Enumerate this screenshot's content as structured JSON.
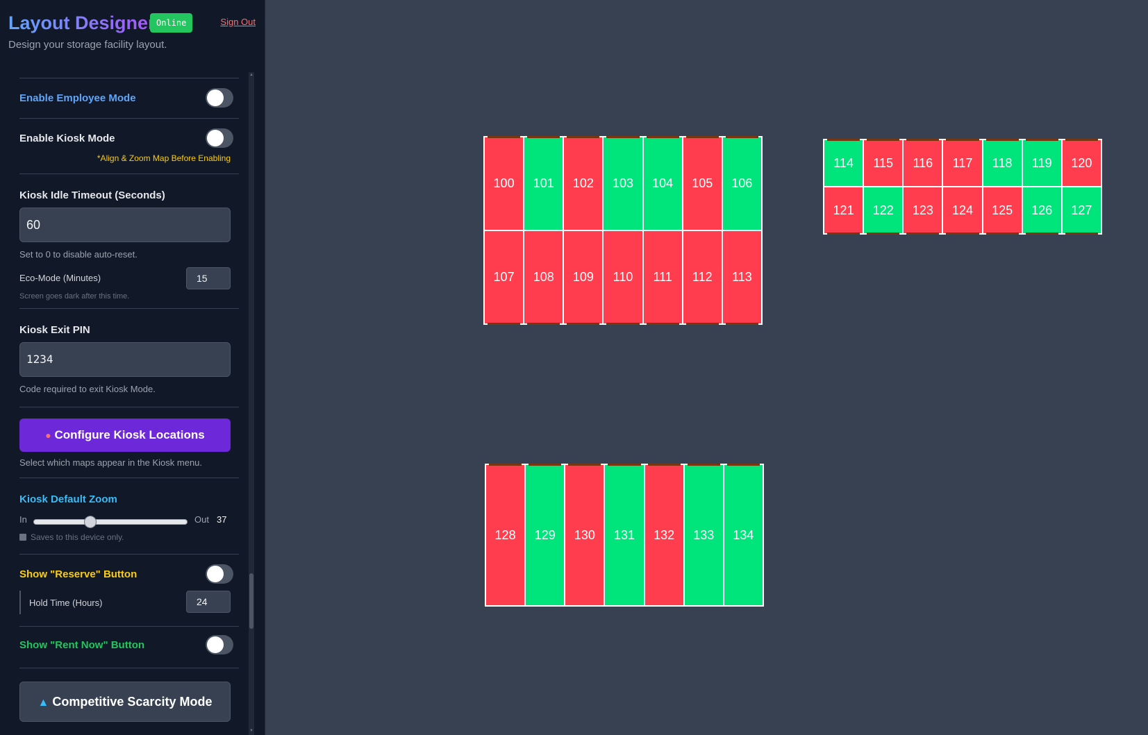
{
  "header": {
    "title": "Layout Designer",
    "status_badge": "Online",
    "sign_out": "Sign Out",
    "subtitle": "Design your storage facility layout."
  },
  "settings": {
    "employee_mode": {
      "label": "Enable Employee Mode",
      "enabled": false
    },
    "kiosk_mode": {
      "label": "Enable Kiosk Mode",
      "enabled": false,
      "note": "*Align & Zoom Map Before Enabling"
    },
    "idle_timeout": {
      "label": "Kiosk Idle Timeout (Seconds)",
      "value": "60",
      "hint": "Set to 0 to disable auto-reset."
    },
    "eco_mode": {
      "label": "Eco-Mode (Minutes)",
      "value": "15",
      "hint": "Screen goes dark after this time."
    },
    "exit_pin": {
      "label": "Kiosk Exit PIN",
      "value": "1234",
      "hint": "Code required to exit Kiosk Mode."
    },
    "configure_locations": {
      "icon": "pin-icon",
      "label": "Configure Kiosk Locations",
      "hint": "Select which maps appear in the Kiosk menu."
    },
    "default_zoom": {
      "label": "Kiosk Default Zoom",
      "min_label": "In",
      "max_label": "Out",
      "value": "37",
      "level": 0.37,
      "note": "Saves to this device only."
    },
    "reserve_button": {
      "label": "Show \"Reserve\" Button",
      "enabled": false,
      "hold_label": "Hold Time (Hours)",
      "hold_value": "24"
    },
    "rent_now_button": {
      "label": "Show \"Rent Now\" Button",
      "enabled": false
    },
    "scarcity_mode": {
      "icon": "tower-icon",
      "label": "Competitive Scarcity Mode"
    }
  },
  "colors": {
    "available": "#00e47c",
    "occupied": "#ff3d4f",
    "accent": "#6d28d9",
    "background": "#374151"
  },
  "map": {
    "blocks": [
      {
        "units": [
          {
            "id": "100",
            "status": "occupied"
          },
          {
            "id": "101",
            "status": "available"
          },
          {
            "id": "102",
            "status": "occupied"
          },
          {
            "id": "103",
            "status": "available"
          },
          {
            "id": "104",
            "status": "available"
          },
          {
            "id": "105",
            "status": "occupied"
          },
          {
            "id": "106",
            "status": "available"
          },
          {
            "id": "107",
            "status": "occupied"
          },
          {
            "id": "108",
            "status": "occupied"
          },
          {
            "id": "109",
            "status": "occupied"
          },
          {
            "id": "110",
            "status": "occupied"
          },
          {
            "id": "111",
            "status": "occupied"
          },
          {
            "id": "112",
            "status": "occupied"
          },
          {
            "id": "113",
            "status": "occupied"
          }
        ]
      },
      {
        "units": [
          {
            "id": "114",
            "status": "available"
          },
          {
            "id": "115",
            "status": "occupied"
          },
          {
            "id": "116",
            "status": "occupied"
          },
          {
            "id": "117",
            "status": "occupied"
          },
          {
            "id": "118",
            "status": "available"
          },
          {
            "id": "119",
            "status": "available"
          },
          {
            "id": "120",
            "status": "occupied"
          },
          {
            "id": "121",
            "status": "occupied"
          },
          {
            "id": "122",
            "status": "available"
          },
          {
            "id": "123",
            "status": "occupied"
          },
          {
            "id": "124",
            "status": "occupied"
          },
          {
            "id": "125",
            "status": "occupied"
          },
          {
            "id": "126",
            "status": "available"
          },
          {
            "id": "127",
            "status": "available"
          }
        ]
      },
      {
        "units": [
          {
            "id": "128",
            "status": "occupied"
          },
          {
            "id": "129",
            "status": "available"
          },
          {
            "id": "130",
            "status": "occupied"
          },
          {
            "id": "131",
            "status": "available"
          },
          {
            "id": "132",
            "status": "occupied"
          },
          {
            "id": "133",
            "status": "available"
          },
          {
            "id": "134",
            "status": "available"
          }
        ]
      }
    ]
  }
}
